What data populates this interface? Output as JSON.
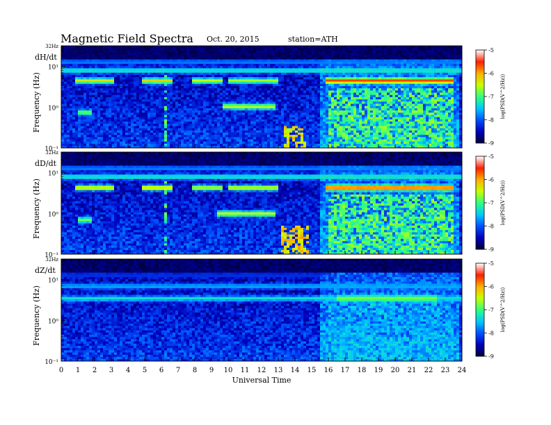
{
  "header": {
    "title": "Magnetic Field Spectra",
    "date": "Oct. 20, 2015",
    "station": "station=ATH"
  },
  "colors": {
    "colormap": [
      "#000033",
      "#0000bb",
      "#0050ff",
      "#00c8ff",
      "#30ff80",
      "#c8ff00",
      "#ffb000",
      "#ff2000",
      "#ffffff"
    ]
  },
  "chart_data": [
    {
      "type": "heatmap",
      "panel_label": "dH/dt",
      "ylabel": "Frequency (Hz)",
      "y_scale": "log",
      "y_ticks": [
        "10⁻¹",
        "10⁰",
        "10¹"
      ],
      "y_top_label": "32Hz",
      "ylim": [
        0.1,
        32
      ],
      "xlim": [
        0,
        24
      ],
      "colorbar": {
        "label": "log(PSD(V^2/Hz))",
        "ticks": [
          -5,
          -6,
          -7,
          -8,
          -9
        ],
        "range": [
          -9,
          -5
        ]
      },
      "bands": [
        {
          "name": "resonance-4Hz",
          "f": 4.5,
          "segments": [
            [
              0.8,
              3.2,
              -6.3
            ],
            [
              4.8,
              6.6,
              -6.2
            ],
            [
              7.8,
              9.7,
              -6.5
            ],
            [
              10.0,
              13.0,
              -6.6
            ],
            [
              15.8,
              23.5,
              -5.6
            ]
          ]
        },
        {
          "name": "line-8Hz",
          "f": 8,
          "segments": [
            [
              0,
              24,
              -7.2
            ]
          ]
        },
        {
          "name": "line-13Hz",
          "f": 13,
          "segments": [
            [
              0,
              24,
              -7.8
            ]
          ]
        },
        {
          "name": "tone-1Hz",
          "f": 1.05,
          "segments": [
            [
              9.6,
              12.8,
              -6.5
            ]
          ]
        },
        {
          "name": "tone-0.7Hz",
          "f": 0.75,
          "segments": [
            [
              1.0,
              1.8,
              -6.8
            ]
          ]
        }
      ],
      "bursts": [
        [
          13.3,
          14.6,
          0.1,
          0.35,
          -6.3
        ],
        [
          6.2,
          6.4,
          0.1,
          6.0,
          -7.0
        ],
        [
          16.0,
          23.5,
          0.1,
          3.0,
          -6.9
        ]
      ]
    },
    {
      "type": "heatmap",
      "panel_label": "dD/dt",
      "ylabel": "Frequency (Hz)",
      "y_scale": "log",
      "y_ticks": [
        "10⁻¹",
        "10⁰",
        "10¹"
      ],
      "y_top_label": "32Hz",
      "ylim": [
        0.1,
        32
      ],
      "xlim": [
        0,
        24
      ],
      "colorbar": {
        "label": "log(PSD(V^2/Hz))",
        "ticks": [
          -5,
          -6,
          -7,
          -8,
          -9
        ],
        "range": [
          -9,
          -5
        ]
      },
      "bands": [
        {
          "name": "resonance-4Hz",
          "f": 4.3,
          "segments": [
            [
              0.8,
              3.2,
              -6.3
            ],
            [
              4.8,
              6.6,
              -6.2
            ],
            [
              7.8,
              9.7,
              -6.5
            ],
            [
              10.0,
              13.0,
              -6.4
            ],
            [
              15.8,
              23.5,
              -5.6
            ]
          ]
        },
        {
          "name": "line-8Hz",
          "f": 8,
          "segments": [
            [
              0,
              24,
              -7.2
            ]
          ]
        },
        {
          "name": "line-13Hz",
          "f": 13,
          "segments": [
            [
              0,
              24,
              -7.8
            ]
          ]
        },
        {
          "name": "tone-1Hz",
          "f": 1.0,
          "segments": [
            [
              9.4,
              12.8,
              -6.5
            ]
          ]
        },
        {
          "name": "tone-0.7Hz",
          "f": 0.7,
          "segments": [
            [
              1.0,
              1.8,
              -6.8
            ]
          ]
        }
      ],
      "bursts": [
        [
          13.2,
          14.8,
          0.1,
          0.5,
          -6.2
        ],
        [
          6.2,
          6.4,
          0.1,
          6.0,
          -7.0
        ],
        [
          16.0,
          23.5,
          0.1,
          3.0,
          -6.9
        ]
      ]
    },
    {
      "type": "heatmap",
      "panel_label": "dZ/dt",
      "ylabel": "Frequency (Hz)",
      "y_scale": "log",
      "y_ticks": [
        "10⁻¹",
        "10⁰",
        "10¹"
      ],
      "y_top_label": "32Hz",
      "ylim": [
        0.1,
        32
      ],
      "xlim": [
        0,
        24
      ],
      "colorbar": {
        "label": "log(PSD(V^2/Hz))",
        "ticks": [
          -5,
          -6,
          -7,
          -8,
          -9
        ],
        "range": [
          -9,
          -5
        ]
      },
      "bands": [
        {
          "name": "resonance-4Hz",
          "f": 3.5,
          "segments": [
            [
              0,
              24,
              -7.3
            ],
            [
              16.5,
              22.5,
              -6.8
            ]
          ]
        },
        {
          "name": "line-8Hz",
          "f": 7,
          "segments": [
            [
              0,
              24,
              -7.6
            ]
          ]
        },
        {
          "name": "line-13Hz",
          "f": 13,
          "segments": [
            [
              0,
              24,
              -8.2
            ]
          ]
        }
      ],
      "bursts": [
        [
          15.7,
          17.2,
          0.1,
          1.0,
          -7.8
        ],
        [
          16.0,
          23.5,
          0.1,
          3.0,
          -7.6
        ]
      ]
    }
  ],
  "x_axis": {
    "label": "Universal Time",
    "ticks": [
      "0",
      "1",
      "2",
      "3",
      "4",
      "5",
      "6",
      "7",
      "8",
      "9",
      "10",
      "11",
      "12",
      "13",
      "14",
      "15",
      "16",
      "17",
      "18",
      "19",
      "20",
      "21",
      "22",
      "23",
      "24"
    ]
  }
}
